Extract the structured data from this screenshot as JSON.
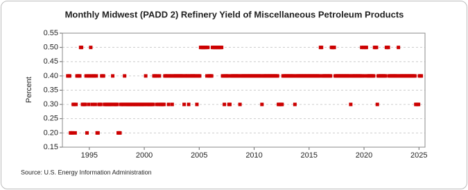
{
  "chart_data": {
    "type": "scatter",
    "title": "Monthly Midwest (PADD 2) Refinery Yield of Miscellaneous Petroleum Products",
    "y_label": "Percent",
    "source": "Source: U.S. Energy Information Administration",
    "color": "#cc0000",
    "grid": true,
    "xlim": [
      1992.55,
      2025.55
    ],
    "xticks": [
      1995,
      2000,
      2005,
      2010,
      2015,
      2020,
      2025
    ],
    "ylim": [
      0.15,
      0.55
    ],
    "yticks": [
      0.15,
      {
        "value": 0.2,
        "label": "0.20"
      },
      0.25,
      {
        "value": 0.3,
        "label": "0.30"
      },
      0.35,
      {
        "value": 0.4,
        "label": "0.40"
      },
      0.45,
      {
        "value": 0.5,
        "label": "0.50"
      },
      0.55
    ],
    "x": [
      1993.04,
      1993.13,
      1993.21,
      1993.29,
      1993.38,
      1993.46,
      1993.54,
      1993.63,
      1993.71,
      1993.79,
      1993.88,
      1993.96,
      1994.04,
      1994.13,
      1994.21,
      1994.29,
      1994.38,
      1994.46,
      1994.54,
      1994.63,
      1994.71,
      1994.79,
      1994.88,
      1994.96,
      1995.04,
      1995.13,
      1995.21,
      1995.29,
      1995.38,
      1995.46,
      1995.54,
      1995.63,
      1995.71,
      1995.79,
      1995.88,
      1995.96,
      1996.04,
      1996.13,
      1996.21,
      1996.29,
      1996.38,
      1996.46,
      1996.54,
      1996.63,
      1996.71,
      1996.79,
      1996.88,
      1996.96,
      1997.04,
      1997.13,
      1997.21,
      1997.29,
      1997.38,
      1997.46,
      1997.54,
      1997.63,
      1997.71,
      1997.79,
      1997.88,
      1997.96,
      1998.04,
      1998.13,
      1998.21,
      1998.29,
      1998.38,
      1998.46,
      1998.54,
      1998.63,
      1998.71,
      1998.79,
      1998.88,
      1998.96,
      1999.04,
      1999.13,
      1999.21,
      1999.29,
      1999.38,
      1999.46,
      1999.54,
      1999.63,
      1999.71,
      1999.79,
      1999.88,
      1999.96,
      2000.04,
      2000.13,
      2000.21,
      2000.29,
      2000.38,
      2000.46,
      2000.54,
      2000.63,
      2000.71,
      2000.79,
      2000.88,
      2000.96,
      2001.04,
      2001.13,
      2001.21,
      2001.29,
      2001.38,
      2001.46,
      2001.54,
      2001.63,
      2001.71,
      2001.79,
      2001.88,
      2001.96,
      2002.04,
      2002.13,
      2002.21,
      2002.29,
      2002.38,
      2002.46,
      2002.54,
      2002.63,
      2002.71,
      2002.79,
      2002.88,
      2002.96,
      2003.04,
      2003.13,
      2003.21,
      2003.29,
      2003.38,
      2003.46,
      2003.54,
      2003.63,
      2003.71,
      2003.79,
      2003.88,
      2003.96,
      2004.04,
      2004.13,
      2004.21,
      2004.29,
      2004.38,
      2004.46,
      2004.54,
      2004.63,
      2004.71,
      2004.79,
      2004.88,
      2004.96,
      2005.04,
      2005.13,
      2005.21,
      2005.29,
      2005.38,
      2005.46,
      2005.54,
      2005.63,
      2005.71,
      2005.79,
      2005.88,
      2005.96,
      2006.04,
      2006.13,
      2006.21,
      2006.29,
      2006.38,
      2006.46,
      2006.54,
      2006.63,
      2006.71,
      2006.79,
      2006.88,
      2006.96,
      2007.04,
      2007.13,
      2007.21,
      2007.29,
      2007.38,
      2007.46,
      2007.54,
      2007.63,
      2007.71,
      2007.79,
      2007.88,
      2007.96,
      2008.04,
      2008.13,
      2008.21,
      2008.29,
      2008.38,
      2008.46,
      2008.54,
      2008.63,
      2008.71,
      2008.79,
      2008.88,
      2008.96,
      2009.04,
      2009.13,
      2009.21,
      2009.29,
      2009.38,
      2009.46,
      2009.54,
      2009.63,
      2009.71,
      2009.79,
      2009.88,
      2009.96,
      2010.04,
      2010.13,
      2010.21,
      2010.29,
      2010.38,
      2010.46,
      2010.54,
      2010.63,
      2010.71,
      2010.79,
      2010.88,
      2010.96,
      2011.04,
      2011.13,
      2011.21,
      2011.29,
      2011.38,
      2011.46,
      2011.54,
      2011.63,
      2011.71,
      2011.79,
      2011.88,
      2011.96,
      2012.04,
      2012.13,
      2012.21,
      2012.29,
      2012.38,
      2012.46,
      2012.54,
      2012.63,
      2012.71,
      2012.79,
      2012.88,
      2012.96,
      2013.04,
      2013.13,
      2013.21,
      2013.29,
      2013.38,
      2013.46,
      2013.54,
      2013.63,
      2013.71,
      2013.79,
      2013.88,
      2013.96,
      2014.04,
      2014.13,
      2014.21,
      2014.29,
      2014.38,
      2014.46,
      2014.54,
      2014.63,
      2014.71,
      2014.79,
      2014.88,
      2014.96,
      2015.04,
      2015.13,
      2015.21,
      2015.29,
      2015.38,
      2015.46,
      2015.54,
      2015.63,
      2015.71,
      2015.79,
      2015.88,
      2015.96,
      2016.04,
      2016.13,
      2016.21,
      2016.29,
      2016.38,
      2016.46,
      2016.54,
      2016.63,
      2016.71,
      2016.79,
      2016.88,
      2016.96,
      2017.04,
      2017.13,
      2017.21,
      2017.29,
      2017.38,
      2017.46,
      2017.54,
      2017.63,
      2017.71,
      2017.79,
      2017.88,
      2017.96,
      2018.04,
      2018.13,
      2018.21,
      2018.29,
      2018.38,
      2018.46,
      2018.54,
      2018.63,
      2018.71,
      2018.79,
      2018.88,
      2018.96,
      2019.04,
      2019.13,
      2019.21,
      2019.29,
      2019.38,
      2019.46,
      2019.54,
      2019.63,
      2019.71,
      2019.79,
      2019.88,
      2019.96,
      2020.04,
      2020.13,
      2020.21,
      2020.29,
      2020.38,
      2020.46,
      2020.54,
      2020.63,
      2020.71,
      2020.79,
      2020.88,
      2020.96,
      2021.04,
      2021.13,
      2021.21,
      2021.29,
      2021.38,
      2021.46,
      2021.54,
      2021.63,
      2021.71,
      2021.79,
      2021.88,
      2021.96,
      2022.04,
      2022.13,
      2022.21,
      2022.29,
      2022.38,
      2022.46,
      2022.54,
      2022.63,
      2022.71,
      2022.79,
      2022.88,
      2022.96,
      2023.04,
      2023.13,
      2023.21,
      2023.29,
      2023.38,
      2023.46,
      2023.54,
      2023.63,
      2023.71,
      2023.79,
      2023.88,
      2023.96,
      2024.04,
      2024.13,
      2024.21,
      2024.29,
      2024.38,
      2024.46,
      2024.54,
      2024.63,
      2024.71,
      2024.79,
      2024.88,
      2024.96,
      2025.04,
      2025.13,
      2025.21
    ],
    "values": [
      0.4,
      0.4,
      0.4,
      0.2,
      0.2,
      0.2,
      0.3,
      0.3,
      0.2,
      0.3,
      0.4,
      0.4,
      0.4,
      0.4,
      0.5,
      0.5,
      0.3,
      0.3,
      0.3,
      0.3,
      0.4,
      0.2,
      0.4,
      0.3,
      0.4,
      0.5,
      0.4,
      0.3,
      0.4,
      0.4,
      0.3,
      0.4,
      0.2,
      0.2,
      0.3,
      0.3,
      0.3,
      0.4,
      0.4,
      0.4,
      0.3,
      0.3,
      0.3,
      0.3,
      0.3,
      0.3,
      0.3,
      0.3,
      0.3,
      0.4,
      0.3,
      0.3,
      0.3,
      0.3,
      0.3,
      0.2,
      0.2,
      0.2,
      0.3,
      0.3,
      0.3,
      0.3,
      0.4,
      0.3,
      0.3,
      0.3,
      0.3,
      0.3,
      0.3,
      0.3,
      0.3,
      0.3,
      0.3,
      0.3,
      0.3,
      0.3,
      0.3,
      0.3,
      0.3,
      0.3,
      0.3,
      0.3,
      0.3,
      0.3,
      0.3,
      0.4,
      0.3,
      0.3,
      0.3,
      0.3,
      0.3,
      0.3,
      0.3,
      0.3,
      0.4,
      0.4,
      0.4,
      0.3,
      0.4,
      0.3,
      0.4,
      0.3,
      0.3,
      0.3,
      0.3,
      0.3,
      0.4,
      0.4,
      0.4,
      0.4,
      0.3,
      0.4,
      0.4,
      0.4,
      0.3,
      0.4,
      0.4,
      0.4,
      0.4,
      0.4,
      0.4,
      0.4,
      0.4,
      0.4,
      0.4,
      0.4,
      0.4,
      0.3,
      0.4,
      0.4,
      0.4,
      0.4,
      0.3,
      0.4,
      0.4,
      0.4,
      0.4,
      0.4,
      0.4,
      0.4,
      0.4,
      0.3,
      0.4,
      0.4,
      0.4,
      0.5,
      0.5,
      0.5,
      0.5,
      0.5,
      0.5,
      0.5,
      0.4,
      0.5,
      0.4,
      0.4,
      0.4,
      0.4,
      0.5,
      0.5,
      0.5,
      0.5,
      0.5,
      0.5,
      0.5,
      0.5,
      0.5,
      0.5,
      0.5,
      0.4,
      0.4,
      0.3,
      0.4,
      0.4,
      0.4,
      0.4,
      0.3,
      0.3,
      0.4,
      0.4,
      0.4,
      0.4,
      0.4,
      0.4,
      0.4,
      0.4,
      0.4,
      0.4,
      0.3,
      0.4,
      0.4,
      0.4,
      0.4,
      0.4,
      0.4,
      0.4,
      0.4,
      0.4,
      0.4,
      0.4,
      0.4,
      0.4,
      0.4,
      0.4,
      0.4,
      0.4,
      0.4,
      0.4,
      0.4,
      0.4,
      0.4,
      0.4,
      0.3,
      0.4,
      0.4,
      0.4,
      0.4,
      0.4,
      0.4,
      0.4,
      0.4,
      0.4,
      0.4,
      0.4,
      0.4,
      0.4,
      0.4,
      0.4,
      0.4,
      0.4,
      0.3,
      0.3,
      0.3,
      0.3,
      0.3,
      0.4,
      0.4,
      0.4,
      0.4,
      0.4,
      0.4,
      0.4,
      0.4,
      0.4,
      0.4,
      0.4,
      0.4,
      0.4,
      0.3,
      0.4,
      0.4,
      0.4,
      0.4,
      0.4,
      0.4,
      0.4,
      0.4,
      0.4,
      0.4,
      0.4,
      0.4,
      0.4,
      0.4,
      0.4,
      0.4,
      0.4,
      0.4,
      0.4,
      0.4,
      0.4,
      0.4,
      0.4,
      0.4,
      0.4,
      0.4,
      0.4,
      0.5,
      0.5,
      0.4,
      0.4,
      0.4,
      0.4,
      0.4,
      0.4,
      0.4,
      0.4,
      0.4,
      0.4,
      0.5,
      0.5,
      0.5,
      0.5,
      0.4,
      0.4,
      0.4,
      0.4,
      0.4,
      0.4,
      0.4,
      0.4,
      0.4,
      0.4,
      0.4,
      0.4,
      0.4,
      0.4,
      0.4,
      0.4,
      0.4,
      0.3,
      0.4,
      0.4,
      0.4,
      0.4,
      0.4,
      0.4,
      0.4,
      0.4,
      0.4,
      0.4,
      0.4,
      0.5,
      0.4,
      0.5,
      0.4,
      0.5,
      0.5,
      0.4,
      0.4,
      0.4,
      0.4,
      0.4,
      0.4,
      0.4,
      0.4,
      0.5,
      0.5,
      0.5,
      0.3,
      0.4,
      0.4,
      0.4,
      0.4,
      0.4,
      0.4,
      0.4,
      0.4,
      0.4,
      0.5,
      0.5,
      0.5,
      0.4,
      0.4,
      0.4,
      0.4,
      0.4,
      0.4,
      0.4,
      0.4,
      0.4,
      0.4,
      0.5,
      0.4,
      0.4,
      0.4,
      0.4,
      0.4,
      0.4,
      0.4,
      0.4,
      0.4,
      0.4,
      0.4,
      0.4,
      0.4,
      0.4,
      0.4,
      0.4,
      0.4,
      0.4,
      0.3,
      0.3,
      0.3,
      0.3,
      0.4,
      0.4,
      0.4
    ]
  }
}
